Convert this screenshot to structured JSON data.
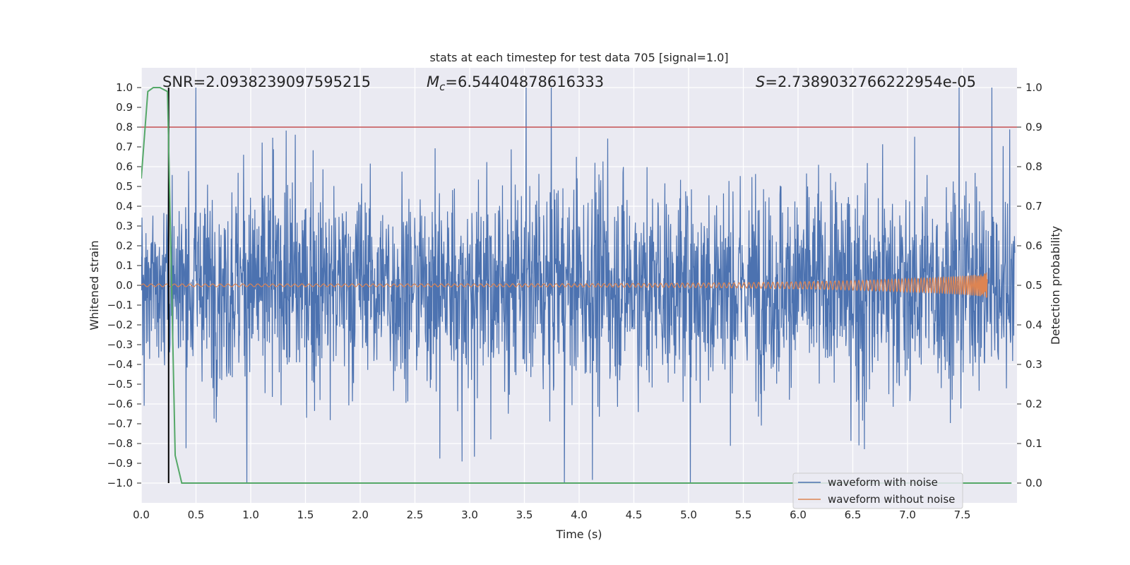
{
  "chart_data": {
    "type": "line",
    "title": "stats at each timestep for test data 705 [signal=1.0]",
    "xlabel": "Time (s)",
    "ylabel": "Whitened strain",
    "y2label": "Detection probability",
    "xlim": [
      0.0,
      8.0
    ],
    "ylim": [
      -1.1,
      1.1
    ],
    "y2lim": [
      -0.05,
      1.05
    ],
    "xticks": [
      0.0,
      0.5,
      1.0,
      1.5,
      2.0,
      2.5,
      3.0,
      3.5,
      4.0,
      4.5,
      5.0,
      5.5,
      6.0,
      6.5,
      7.0,
      7.5
    ],
    "xtick_labels": [
      "0.0",
      "0.5",
      "1.0",
      "1.5",
      "2.0",
      "2.5",
      "3.0",
      "3.5",
      "4.0",
      "4.5",
      "5.0",
      "5.5",
      "6.0",
      "6.5",
      "7.0",
      "7.5"
    ],
    "yticks": [
      1.0,
      0.9,
      0.8,
      0.7,
      0.6,
      0.5,
      0.4,
      0.3,
      0.2,
      0.1,
      0.0,
      -0.1,
      -0.2,
      -0.3,
      -0.4,
      -0.5,
      -0.6,
      -0.7,
      -0.8,
      -0.9,
      -1.0
    ],
    "ytick_labels": [
      "1.0",
      "0.9",
      "0.8",
      "0.7",
      "0.6",
      "0.5",
      "0.4",
      "0.3",
      "0.2",
      "0.1",
      "0.0",
      "−0.1",
      "−0.2",
      "−0.3",
      "−0.4",
      "−0.5",
      "−0.6",
      "−0.7",
      "−0.8",
      "−0.9",
      "−1.0"
    ],
    "y2ticks": [
      1.0,
      0.9,
      0.8,
      0.7,
      0.6,
      0.5,
      0.4,
      0.3,
      0.2,
      0.1,
      0.0
    ],
    "y2tick_labels": [
      "1.0",
      "0.9",
      "0.8",
      "0.7",
      "0.6",
      "0.5",
      "0.4",
      "0.3",
      "0.2",
      "0.1",
      "0.0"
    ],
    "annotations": {
      "snr": "SNR=2.0938239097595215",
      "mc_symbol": "M",
      "mc_sub": "c",
      "mc_value": "=6.54404878616333",
      "s_symbol": "S",
      "s_value": "=2.7389032766222954e-05"
    },
    "series": [
      {
        "name": "waveform with noise",
        "color": "#4c72b0",
        "kind": "noise",
        "t_range": [
          0.0,
          7.98
        ],
        "amplitude_range": [
          -1.0,
          1.0
        ]
      },
      {
        "name": "waveform without noise",
        "color": "#dd8452",
        "kind": "chirp",
        "t_range": [
          0.0,
          7.73
        ],
        "peak_amplitude": 0.08
      },
      {
        "name": "detection probability",
        "color": "#55a868",
        "axis": "right",
        "t": [
          0.0,
          0.06,
          0.11,
          0.17,
          0.24,
          0.31,
          0.37,
          7.95
        ],
        "values": [
          0.77,
          0.99,
          1.0,
          1.0,
          0.99,
          0.07,
          0.0,
          0.0
        ]
      },
      {
        "name": "threshold",
        "color": "#c44e52",
        "axis": "right",
        "value": 0.9
      },
      {
        "name": "marker",
        "color": "#000000",
        "t": 0.25,
        "y_range": [
          -1.0,
          1.0
        ]
      }
    ],
    "legend": {
      "position": "lower-right",
      "entries": [
        "waveform with noise",
        "waveform without noise"
      ]
    }
  }
}
